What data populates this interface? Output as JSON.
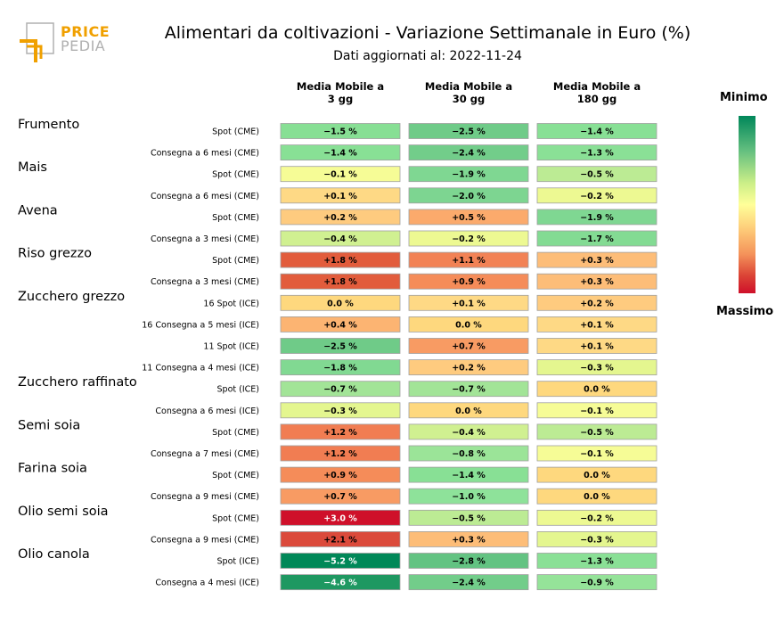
{
  "logo": {
    "line1": "PRICE",
    "line2": "PEDIA"
  },
  "header": {
    "title": "Alimentari da coltivazioni - Variazione Settimanale in Euro (%)",
    "subtitle": "Dati aggiornati al: 2022-11-24"
  },
  "columns": [
    {
      "line1": "Media Mobile a",
      "line2": "3 gg"
    },
    {
      "line1": "Media Mobile a",
      "line2": "30 gg"
    },
    {
      "line1": "Media Mobile a",
      "line2": "180 gg"
    }
  ],
  "legend": {
    "min_label": "Minimo",
    "max_label": "Massimo"
  },
  "colors": {
    "min": "#00875a",
    "mid": "#ffff99",
    "max": "#cf102a"
  },
  "chart_data": {
    "type": "table",
    "commodities": [
      {
        "name": "Frumento",
        "rows": [
          {
            "label": "Spot (CME)",
            "values": [
              "−1.5 %",
              "−2.5 %",
              "−1.4 %"
            ],
            "num": [
              -1.5,
              -2.5,
              -1.4
            ]
          },
          {
            "label": "Consegna a 6 mesi (CME)",
            "values": [
              "−1.4 %",
              "−2.4 %",
              "−1.3 %"
            ],
            "num": [
              -1.4,
              -2.4,
              -1.3
            ]
          }
        ]
      },
      {
        "name": "Mais",
        "rows": [
          {
            "label": "Spot (CME)",
            "values": [
              "−0.1 %",
              "−1.9 %",
              "−0.5 %"
            ],
            "num": [
              -0.1,
              -1.9,
              -0.5
            ]
          },
          {
            "label": "Consegna a 6 mesi (CME)",
            "values": [
              "+0.1 %",
              "−2.0 %",
              "−0.2 %"
            ],
            "num": [
              0.1,
              -2.0,
              -0.2
            ]
          }
        ]
      },
      {
        "name": "Avena",
        "rows": [
          {
            "label": "Spot (CME)",
            "values": [
              "+0.2 %",
              "+0.5 %",
              "−1.9 %"
            ],
            "num": [
              0.2,
              0.5,
              -1.9
            ]
          },
          {
            "label": "Consegna a 3 mesi (CME)",
            "values": [
              "−0.4 %",
              "−0.2 %",
              "−1.7 %"
            ],
            "num": [
              -0.4,
              -0.2,
              -1.7
            ]
          }
        ]
      },
      {
        "name": "Riso grezzo",
        "rows": [
          {
            "label": "Spot (CME)",
            "values": [
              "+1.8 %",
              "+1.1 %",
              "+0.3 %"
            ],
            "num": [
              1.8,
              1.1,
              0.3
            ]
          },
          {
            "label": "Consegna a 3 mesi (CME)",
            "values": [
              "+1.8 %",
              "+0.9 %",
              "+0.3 %"
            ],
            "num": [
              1.8,
              0.9,
              0.3
            ]
          }
        ]
      },
      {
        "name": "Zucchero grezzo",
        "rows": [
          {
            "label": "16 Spot (ICE)",
            "values": [
              "0.0 %",
              "+0.1 %",
              "+0.2 %"
            ],
            "num": [
              0.0,
              0.1,
              0.2
            ]
          },
          {
            "label": "16 Consegna a 5 mesi (ICE)",
            "values": [
              "+0.4 %",
              "0.0 %",
              "+0.1 %"
            ],
            "num": [
              0.4,
              0.0,
              0.1
            ]
          },
          {
            "label": "11 Spot (ICE)",
            "values": [
              "−2.5 %",
              "+0.7 %",
              "+0.1 %"
            ],
            "num": [
              -2.5,
              0.7,
              0.1
            ]
          },
          {
            "label": "11 Consegna a 4 mesi (ICE)",
            "values": [
              "−1.8 %",
              "+0.2 %",
              "−0.3 %"
            ],
            "num": [
              -1.8,
              0.2,
              -0.3
            ]
          }
        ]
      },
      {
        "name": "Zucchero raffinato",
        "rows": [
          {
            "label": "Spot (ICE)",
            "values": [
              "−0.7 %",
              "−0.7 %",
              "0.0 %"
            ],
            "num": [
              -0.7,
              -0.7,
              0.0
            ]
          },
          {
            "label": "Consegna a 6 mesi (ICE)",
            "values": [
              "−0.3 %",
              "0.0 %",
              "−0.1 %"
            ],
            "num": [
              -0.3,
              0.0,
              -0.1
            ]
          }
        ]
      },
      {
        "name": "Semi soia",
        "rows": [
          {
            "label": "Spot (CME)",
            "values": [
              "+1.2 %",
              "−0.4 %",
              "−0.5 %"
            ],
            "num": [
              1.2,
              -0.4,
              -0.5
            ]
          },
          {
            "label": "Consegna a 7 mesi (CME)",
            "values": [
              "+1.2 %",
              "−0.8 %",
              "−0.1 %"
            ],
            "num": [
              1.2,
              -0.8,
              -0.1
            ]
          }
        ]
      },
      {
        "name": "Farina soia",
        "rows": [
          {
            "label": "Spot (CME)",
            "values": [
              "+0.9 %",
              "−1.4 %",
              "0.0 %"
            ],
            "num": [
              0.9,
              -1.4,
              0.0
            ]
          },
          {
            "label": "Consegna a 9 mesi (CME)",
            "values": [
              "+0.7 %",
              "−1.0 %",
              "0.0 %"
            ],
            "num": [
              0.7,
              -1.0,
              0.0
            ]
          }
        ]
      },
      {
        "name": "Olio semi soia",
        "rows": [
          {
            "label": "Spot (CME)",
            "values": [
              "+3.0 %",
              "−0.5 %",
              "−0.2 %"
            ],
            "num": [
              3.0,
              -0.5,
              -0.2
            ]
          },
          {
            "label": "Consegna a 9 mesi (CME)",
            "values": [
              "+2.1 %",
              "+0.3 %",
              "−0.3 %"
            ],
            "num": [
              2.1,
              0.3,
              -0.3
            ]
          }
        ]
      },
      {
        "name": "Olio canola",
        "rows": [
          {
            "label": "Spot (ICE)",
            "values": [
              "−5.2 %",
              "−2.8 %",
              "−1.3 %"
            ],
            "num": [
              -5.2,
              -2.8,
              -1.3
            ]
          },
          {
            "label": "Consegna a 4 mesi (ICE)",
            "values": [
              "−4.6 %",
              "−2.4 %",
              "−0.9 %"
            ],
            "num": [
              -4.6,
              -2.4,
              -0.9
            ]
          }
        ]
      }
    ]
  }
}
